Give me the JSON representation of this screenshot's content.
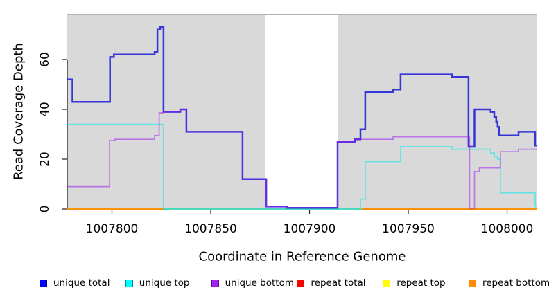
{
  "chart_data": {
    "type": "line",
    "subtype": "step-coverage-plot",
    "title": "",
    "xlabel": "Coordinate in Reference Genome",
    "ylabel": "Read Coverage Depth",
    "xlim": [
      1007777.4,
      1008015.3
    ],
    "ylim": [
      0,
      78
    ],
    "x_ticks": [
      1007800,
      1007850,
      1007900,
      1007950,
      1008000
    ],
    "y_ticks": [
      0,
      20,
      40,
      60
    ],
    "grid": false,
    "legend_position": "bottom",
    "plot_bg_color": "#d9d9d9",
    "outer_bg_color": "#ffffff",
    "gap_region": {
      "x_start": 1007877.7,
      "x_end": 1007914.2,
      "color": "#ffffff",
      "note": "white vertical band with no gray background"
    },
    "series": [
      {
        "name": "repeat total",
        "stroke": "#cc0000",
        "line_width": 1.6,
        "points": [
          [
            1007777.4,
            0
          ]
        ],
        "end_x": 1008015.3
      },
      {
        "name": "repeat top",
        "stroke": "#ffff00",
        "line_width": 1.6,
        "points": [
          [
            1007777.4,
            0
          ]
        ],
        "end_x": 1008015.3
      },
      {
        "name": "repeat bottom",
        "stroke": "#ff8c00",
        "line_width": 1.8,
        "points": [
          [
            1007777.4,
            0
          ]
        ],
        "end_x": 1007826.1
      },
      {
        "name": "repeat bottom",
        "stroke": "#ff8c00",
        "line_width": 1.8,
        "points": [
          [
            1007926.5,
            0
          ]
        ],
        "end_x": 1008015.3
      },
      {
        "name": "zero coverage gap line",
        "stroke": "#8fcb8f",
        "line_width": 2,
        "points": [
          [
            1007826.1,
            0
          ]
        ],
        "end_x": 1007926.5
      },
      {
        "name": "unique top",
        "stroke": "rgba(0,235,235,0.55)",
        "line_width": 1.7,
        "points": [
          [
            1007777.4,
            34
          ],
          [
            1007826.1,
            0
          ],
          [
            1007925.8,
            4
          ],
          [
            1007928.2,
            19
          ],
          [
            1007946.1,
            25
          ],
          [
            1007972.1,
            24
          ],
          [
            1007991.7,
            22.5
          ],
          [
            1007993.5,
            21
          ],
          [
            1007995.2,
            20
          ],
          [
            1007996.6,
            6.5
          ],
          [
            1008014.2,
            1
          ]
        ],
        "end_x": 1008015.3
      },
      {
        "name": "unique total",
        "stroke": "rgba(30,30,215,0.88)",
        "line_width": 2.5,
        "points": [
          [
            1007777.4,
            52
          ],
          [
            1007780,
            43
          ],
          [
            1007799,
            61
          ],
          [
            1007801,
            62
          ],
          [
            1007821.6,
            63
          ],
          [
            1007823,
            72
          ],
          [
            1007824.4,
            73
          ],
          [
            1007826.1,
            39
          ],
          [
            1007834.6,
            40
          ],
          [
            1007837.7,
            31
          ],
          [
            1007866.1,
            12
          ],
          [
            1007878.1,
            1
          ],
          [
            1007888.6,
            0.5
          ],
          [
            1007914.2,
            27
          ],
          [
            1007923,
            28
          ],
          [
            1007925.8,
            32
          ],
          [
            1007928.2,
            47
          ],
          [
            1007942.3,
            48
          ],
          [
            1007946.1,
            54
          ],
          [
            1007972.1,
            53
          ],
          [
            1007980.5,
            25
          ],
          [
            1007983.5,
            40
          ],
          [
            1007991.7,
            39
          ],
          [
            1007993.5,
            37
          ],
          [
            1007994.5,
            35
          ],
          [
            1007995.2,
            33
          ],
          [
            1007995.9,
            29.5
          ],
          [
            1008005.8,
            31
          ],
          [
            1008014.2,
            25.5
          ]
        ],
        "end_x": 1008015.3
      },
      {
        "name": "unique bottom",
        "stroke": "rgba(160,32,240,0.55)",
        "line_width": 1.7,
        "points": [
          [
            1007777.4,
            9
          ],
          [
            1007798.8,
            27.5
          ],
          [
            1007801.5,
            28
          ],
          [
            1007821.6,
            29.5
          ],
          [
            1007823.9,
            38.6
          ],
          [
            1007826.1,
            39
          ],
          [
            1007834.6,
            40
          ],
          [
            1007837.7,
            31
          ],
          [
            1007866.1,
            12
          ],
          [
            1007878.1,
            1
          ],
          [
            1007888.6,
            0.5
          ],
          [
            1007914.2,
            27
          ],
          [
            1007923,
            28
          ],
          [
            1007942.3,
            29
          ],
          [
            1007981,
            0.3
          ],
          [
            1007983.5,
            15
          ],
          [
            1007986,
            16.5
          ],
          [
            1007996.6,
            23
          ],
          [
            1008005.8,
            24
          ]
        ],
        "end_x": 1008015.3
      }
    ],
    "legend_entries": [
      {
        "label": "unique total",
        "color": "#0000ff"
      },
      {
        "label": "unique top",
        "color": "#00ffff"
      },
      {
        "label": "unique bottom",
        "color": "#a020f0"
      },
      {
        "label": "repeat total",
        "color": "#ff0000"
      },
      {
        "label": "repeat top",
        "color": "#ffff00"
      },
      {
        "label": "repeat bottom",
        "color": "#ff8c00"
      }
    ],
    "axis_color": "#333333",
    "top_border_color": "#999999"
  }
}
